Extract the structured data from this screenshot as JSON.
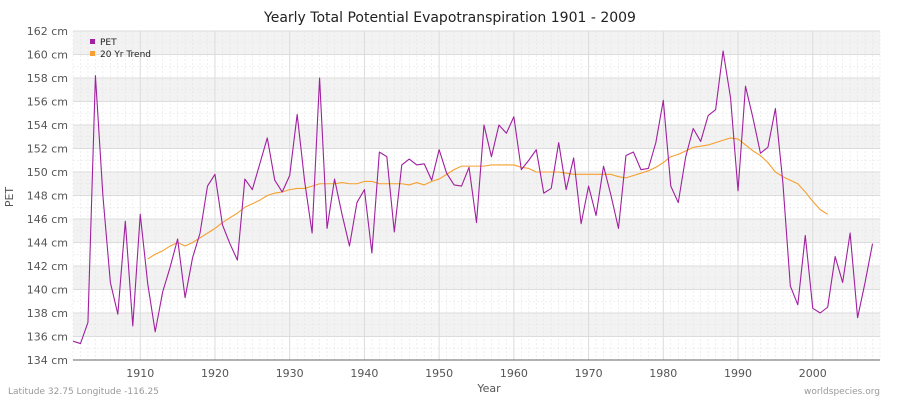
{
  "chart_data": {
    "type": "line",
    "title": "Yearly Total Potential Evapotranspiration 1901 - 2009",
    "xlabel": "Year",
    "ylabel": "PET",
    "xlim": [
      1901,
      2009
    ],
    "ylim": [
      134,
      162
    ],
    "y_unit": "cm",
    "xticks": [
      1910,
      1920,
      1930,
      1940,
      1950,
      1960,
      1970,
      1980,
      1990,
      2000
    ],
    "yticks": [
      134,
      136,
      138,
      140,
      142,
      144,
      146,
      148,
      150,
      152,
      154,
      156,
      158,
      160,
      162
    ],
    "ytick_labels": [
      "134 cm",
      "136 cm",
      "138 cm",
      "140 cm",
      "142 cm",
      "144 cm",
      "146 cm",
      "148 cm",
      "150 cm",
      "152 cm",
      "154 cm",
      "156 cm",
      "158 cm",
      "160 cm",
      "162 cm"
    ],
    "grid": true,
    "legend": "top-left",
    "series": [
      {
        "name": "PET",
        "color": "#a020a0",
        "x_start": 1901,
        "values": [
          135.6,
          135.4,
          137.2,
          158.2,
          148.0,
          140.6,
          137.9,
          145.8,
          136.9,
          146.4,
          140.5,
          136.4,
          139.8,
          141.9,
          144.3,
          139.3,
          142.7,
          144.8,
          148.8,
          149.8,
          145.5,
          143.9,
          142.5,
          149.4,
          148.5,
          150.7,
          152.9,
          149.3,
          148.3,
          149.7,
          154.9,
          149.2,
          144.8,
          158.0,
          145.2,
          149.4,
          146.4,
          143.7,
          147.4,
          148.5,
          143.1,
          151.7,
          151.3,
          144.9,
          150.6,
          151.1,
          150.6,
          150.7,
          149.3,
          151.9,
          149.9,
          148.9,
          148.8,
          150.4,
          145.7,
          154.0,
          151.3,
          154.0,
          153.3,
          154.7,
          150.2,
          151.0,
          151.9,
          148.2,
          148.6,
          152.5,
          148.5,
          151.2,
          145.6,
          148.8,
          146.3,
          150.5,
          148.0,
          145.2,
          151.4,
          151.7,
          150.2,
          150.3,
          152.5,
          156.1,
          148.8,
          147.4,
          151.3,
          153.7,
          152.6,
          154.8,
          155.3,
          160.3,
          156.3,
          148.4,
          157.3,
          154.6,
          151.6,
          152.1,
          155.4,
          149.1,
          140.3,
          138.7,
          144.6,
          138.4,
          138.0,
          138.5,
          142.8,
          140.6,
          144.8,
          137.6,
          140.6,
          143.9
        ]
      },
      {
        "name": "20 Yr Trend",
        "color": "#f5a030",
        "x_start": 1911,
        "values": [
          142.6,
          143.0,
          143.3,
          143.7,
          144.0,
          143.7,
          144.0,
          144.4,
          144.8,
          145.2,
          145.7,
          146.1,
          146.5,
          147.0,
          147.3,
          147.6,
          148.0,
          148.2,
          148.3,
          148.5,
          148.6,
          148.6,
          148.8,
          149.0,
          149.0,
          149.0,
          149.1,
          149.0,
          149.0,
          149.2,
          149.2,
          149.0,
          149.0,
          149.0,
          149.0,
          148.9,
          149.1,
          148.9,
          149.2,
          149.4,
          149.8,
          150.2,
          150.5,
          150.5,
          150.5,
          150.5,
          150.6,
          150.6,
          150.6,
          150.6,
          150.4,
          150.3,
          150.0,
          150.0,
          150.0,
          150.0,
          149.9,
          149.8,
          149.8,
          149.8,
          149.8,
          149.8,
          149.8,
          149.6,
          149.5,
          149.7,
          149.9,
          150.1,
          150.4,
          150.8,
          151.3,
          151.5,
          151.8,
          152.1,
          152.2,
          152.3,
          152.5,
          152.7,
          152.9,
          152.8,
          152.3,
          151.8,
          151.4,
          150.8,
          150.0,
          149.6,
          149.3,
          149.0,
          148.3,
          147.5,
          146.8,
          146.4
        ]
      }
    ]
  },
  "footer": {
    "left": "Latitude 32.75 Longitude -116.25",
    "right": "worldspecies.org"
  }
}
